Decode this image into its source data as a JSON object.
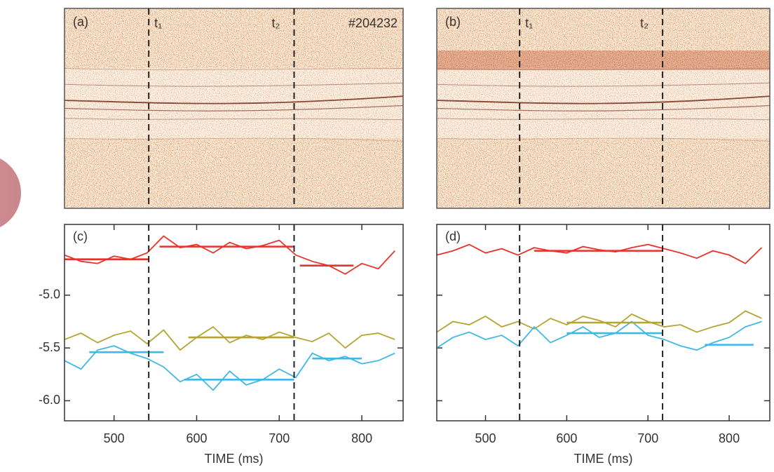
{
  "chart_data": [
    {
      "type": "spectrogram",
      "label": "(a)",
      "xlim": [
        440,
        850
      ],
      "markers": [
        542,
        718
      ],
      "marker_labels": [
        "t₁",
        "t₂"
      ],
      "shot": "#204232"
    },
    {
      "type": "spectrogram",
      "label": "(b)",
      "xlim": [
        440,
        850
      ],
      "markers": [
        542,
        718
      ],
      "marker_labels": [
        "t₁",
        "t₂"
      ]
    },
    {
      "type": "line",
      "label": "(c)",
      "xlabel": "TIME (ms)",
      "xlim": [
        440,
        850
      ],
      "xticks": [
        500,
        600,
        700,
        800
      ],
      "ylim": [
        -6.19,
        -4.33
      ],
      "yticks": [
        {
          "value": -5,
          "label": "-5.0"
        },
        -5.5,
        {
          "value": -6,
          "label": "-6.0"
        }
      ],
      "ytick_labels": true,
      "markers": [
        542,
        718
      ],
      "x": [
        440,
        460,
        480,
        500,
        520,
        540,
        560,
        580,
        600,
        620,
        640,
        660,
        680,
        700,
        720,
        740,
        760,
        780,
        800,
        820,
        840
      ],
      "series": [
        {
          "color": "#e8332a",
          "values": [
            -4.62,
            -4.68,
            -4.7,
            -4.63,
            -4.66,
            -4.6,
            -4.44,
            -4.55,
            -4.52,
            -4.6,
            -4.5,
            -4.56,
            -4.53,
            -4.48,
            -4.62,
            -4.68,
            -4.72,
            -4.8,
            -4.7,
            -4.75,
            -4.58
          ]
        },
        {
          "color": "#b5a334",
          "values": [
            -5.42,
            -5.36,
            -5.45,
            -5.38,
            -5.34,
            -5.46,
            -5.33,
            -5.52,
            -5.4,
            -5.3,
            -5.45,
            -5.38,
            -5.42,
            -5.35,
            -5.4,
            -5.44,
            -5.36,
            -5.5,
            -5.38,
            -5.36,
            -5.42
          ]
        },
        {
          "color": "#3fb8e3",
          "values": [
            -5.62,
            -5.7,
            -5.52,
            -5.48,
            -5.55,
            -5.6,
            -5.68,
            -5.82,
            -5.75,
            -5.9,
            -5.72,
            -5.85,
            -5.8,
            -5.7,
            -5.78,
            -5.55,
            -5.62,
            -5.58,
            -5.65,
            -5.62,
            -5.55
          ]
        }
      ],
      "levels": [
        {
          "color": "#e8332a",
          "x": [
            440,
            542
          ],
          "values": [
            -4.66,
            -4.66
          ]
        },
        {
          "color": "#e8332a",
          "x": [
            555,
            718
          ],
          "values": [
            -4.54,
            -4.54
          ]
        },
        {
          "color": "#e8332a",
          "x": [
            725,
            790
          ],
          "values": [
            -4.72,
            -4.72
          ]
        },
        {
          "color": "#b5a334",
          "x": [
            590,
            718
          ],
          "values": [
            -5.4,
            -5.4
          ]
        },
        {
          "color": "#3fb8e3",
          "x": [
            470,
            560
          ],
          "values": [
            -5.54,
            -5.54
          ]
        },
        {
          "color": "#3fb8e3",
          "x": [
            585,
            718
          ],
          "values": [
            -5.8,
            -5.8
          ]
        },
        {
          "color": "#3fb8e3",
          "x": [
            740,
            800
          ],
          "values": [
            -5.6,
            -5.6
          ]
        }
      ]
    },
    {
      "type": "line",
      "label": "(d)",
      "xlabel": "TIME (ms)",
      "xlim": [
        440,
        850
      ],
      "xticks": [
        500,
        600,
        700,
        800
      ],
      "ylim": [
        -6.19,
        -4.33
      ],
      "yticks": [
        -5,
        -5.5,
        -6
      ],
      "ytick_labels": false,
      "markers": [
        542,
        718
      ],
      "x": [
        440,
        460,
        480,
        500,
        520,
        540,
        560,
        580,
        600,
        620,
        640,
        660,
        680,
        700,
        720,
        740,
        760,
        780,
        800,
        820,
        840
      ],
      "series": [
        {
          "color": "#e8332a",
          "values": [
            -4.62,
            -4.58,
            -4.52,
            -4.6,
            -4.56,
            -4.62,
            -4.55,
            -4.58,
            -4.6,
            -4.54,
            -4.57,
            -4.59,
            -4.55,
            -4.52,
            -4.56,
            -4.6,
            -4.65,
            -4.58,
            -4.62,
            -4.7,
            -4.55
          ]
        },
        {
          "color": "#b5a334",
          "values": [
            -5.35,
            -5.25,
            -5.28,
            -5.2,
            -5.3,
            -5.25,
            -5.32,
            -5.22,
            -5.28,
            -5.2,
            -5.24,
            -5.3,
            -5.18,
            -5.25,
            -5.3,
            -5.28,
            -5.35,
            -5.3,
            -5.26,
            -5.15,
            -5.22
          ]
        },
        {
          "color": "#3fb8e3",
          "values": [
            -5.5,
            -5.4,
            -5.35,
            -5.42,
            -5.38,
            -5.48,
            -5.3,
            -5.45,
            -5.38,
            -5.3,
            -5.4,
            -5.36,
            -5.25,
            -5.38,
            -5.42,
            -5.48,
            -5.52,
            -5.45,
            -5.4,
            -5.3,
            -5.25
          ]
        }
      ],
      "levels": [
        {
          "color": "#e8332a",
          "x": [
            560,
            718
          ],
          "values": [
            -4.58,
            -4.58
          ]
        },
        {
          "color": "#b5a334",
          "x": [
            600,
            718
          ],
          "values": [
            -5.26,
            -5.26
          ]
        },
        {
          "color": "#3fb8e3",
          "x": [
            600,
            718
          ],
          "values": [
            -5.36,
            -5.36
          ]
        },
        {
          "color": "#3fb8e3",
          "x": [
            770,
            830
          ],
          "values": [
            -5.47,
            -5.47
          ]
        }
      ]
    }
  ]
}
